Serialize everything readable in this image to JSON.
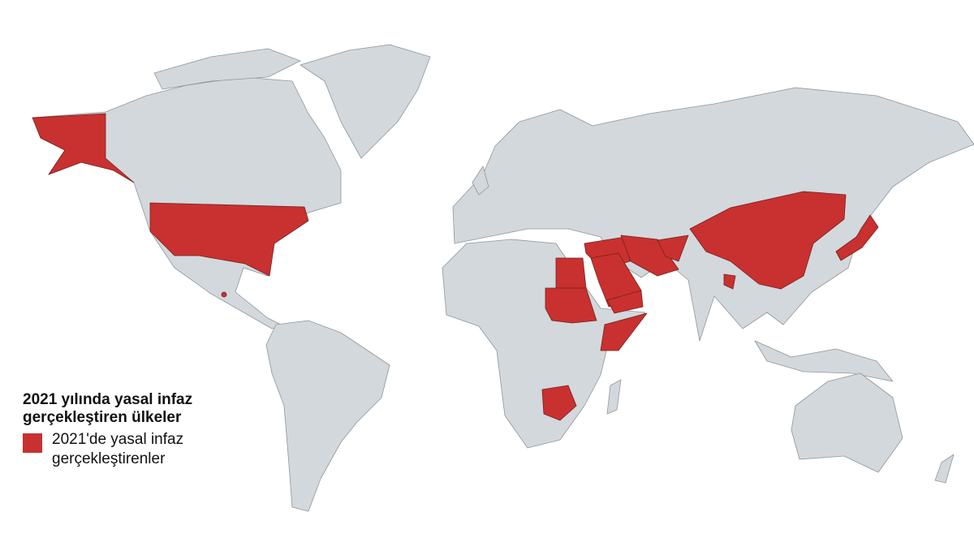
{
  "legend": {
    "title": "2021 yılında yasal infaz gerçekleştiren ülkeler",
    "item_label": "2021'de yasal infaz gerçekleştirenler"
  },
  "colors": {
    "highlight": "#c8312f",
    "land": "#d3d8dc",
    "border": "#8f959a",
    "ocean": "#ffffff"
  },
  "highlighted_countries": [
    "United States",
    "Egypt",
    "Sudan",
    "Saudi Arabia",
    "Yemen",
    "Somalia",
    "Syria",
    "Iraq",
    "Iran",
    "Afghanistan",
    "China",
    "Bangladesh",
    "Japan",
    "Botswana"
  ]
}
